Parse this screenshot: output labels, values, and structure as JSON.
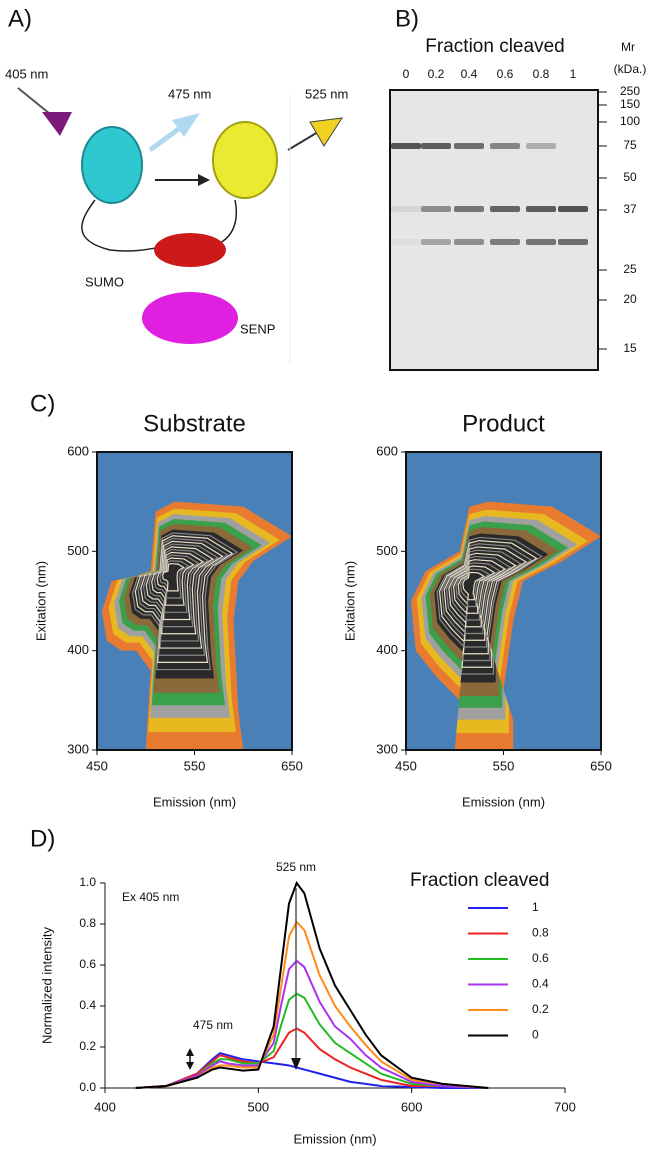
{
  "panel_a": {
    "label": "A)",
    "ex_label": "405 nm",
    "cfp_label": "475 nm",
    "yfp_label": "525 nm",
    "sumo_label": "SUMO",
    "senp_label": "SENP"
  },
  "panel_b": {
    "label": "B)",
    "title": "Fraction cleaved",
    "lanes": [
      "0",
      "0.2",
      "0.4",
      "0.6",
      "0.8",
      "1"
    ],
    "mr_title": "Mr",
    "mr_unit": "(kDa.)",
    "markers": [
      "250",
      "150",
      "100",
      "75",
      "50",
      "37",
      "25",
      "20",
      "15"
    ]
  },
  "panel_c": {
    "label": "C)",
    "plots": [
      {
        "title": "Substrate"
      },
      {
        "title": "Product"
      }
    ],
    "x_label": "Emission (nm)",
    "y_label": "Exitation (nm)",
    "xlim": [
      450,
      650
    ],
    "xticks": [
      450,
      550,
      650
    ],
    "ylim": [
      300,
      600
    ],
    "yticks": [
      300,
      400,
      500,
      600
    ]
  },
  "chart_data": {
    "type": "line",
    "panel_label": "D)",
    "x_label": "Emission (nm)",
    "y_label": "Normalized intensity",
    "annotations": [
      "Ex 405 nm",
      "475 nm",
      "525 nm"
    ],
    "legend_title": "Fraction cleaved",
    "legend": "right",
    "xlim": [
      400,
      700
    ],
    "xticks": [
      400,
      500,
      600,
      700
    ],
    "ylim": [
      0,
      1
    ],
    "yticks": [
      {
        "value": 0,
        "label": "0.0"
      },
      0.2,
      0.4,
      0.6,
      0.8,
      {
        "value": 1,
        "label": "1.0"
      }
    ],
    "x": [
      420,
      440,
      460,
      470,
      475,
      480,
      490,
      500,
      510,
      515,
      520,
      525,
      530,
      540,
      550,
      560,
      570,
      580,
      600,
      620,
      650
    ],
    "series": [
      {
        "name": "1",
        "color": "#2222ee",
        "values": [
          0,
          0.01,
          0.07,
          0.14,
          0.17,
          0.16,
          0.14,
          0.13,
          0.12,
          0.115,
          0.11,
          0.1,
          0.09,
          0.07,
          0.05,
          0.03,
          0.02,
          0.01,
          0.005,
          0,
          0
        ]
      },
      {
        "name": "0.8",
        "color": "#ee2222",
        "values": [
          0,
          0.01,
          0.07,
          0.13,
          0.16,
          0.15,
          0.13,
          0.12,
          0.15,
          0.21,
          0.27,
          0.29,
          0.27,
          0.19,
          0.14,
          0.1,
          0.07,
          0.04,
          0.01,
          0.01,
          0
        ]
      },
      {
        "name": "0.6",
        "color": "#22bb22",
        "values": [
          0,
          0.01,
          0.06,
          0.12,
          0.14,
          0.14,
          0.12,
          0.12,
          0.18,
          0.31,
          0.43,
          0.46,
          0.44,
          0.31,
          0.22,
          0.17,
          0.12,
          0.07,
          0.02,
          0.01,
          0
        ]
      },
      {
        "name": "0.4",
        "color": "#aa33ee",
        "values": [
          0,
          0.01,
          0.06,
          0.11,
          0.13,
          0.12,
          0.11,
          0.11,
          0.22,
          0.41,
          0.58,
          0.62,
          0.59,
          0.42,
          0.3,
          0.24,
          0.16,
          0.1,
          0.03,
          0.01,
          0
        ]
      },
      {
        "name": "0.2",
        "color": "#ff8c1a",
        "values": [
          0,
          0.01,
          0.05,
          0.1,
          0.11,
          0.11,
          0.1,
          0.1,
          0.26,
          0.5,
          0.74,
          0.81,
          0.77,
          0.55,
          0.4,
          0.3,
          0.21,
          0.13,
          0.04,
          0.02,
          0
        ]
      },
      {
        "name": "0",
        "color": "#000000",
        "values": [
          0,
          0.01,
          0.05,
          0.09,
          0.1,
          0.095,
          0.085,
          0.09,
          0.3,
          0.6,
          0.9,
          1,
          0.95,
          0.68,
          0.5,
          0.38,
          0.26,
          0.16,
          0.05,
          0.02,
          0
        ]
      }
    ]
  }
}
